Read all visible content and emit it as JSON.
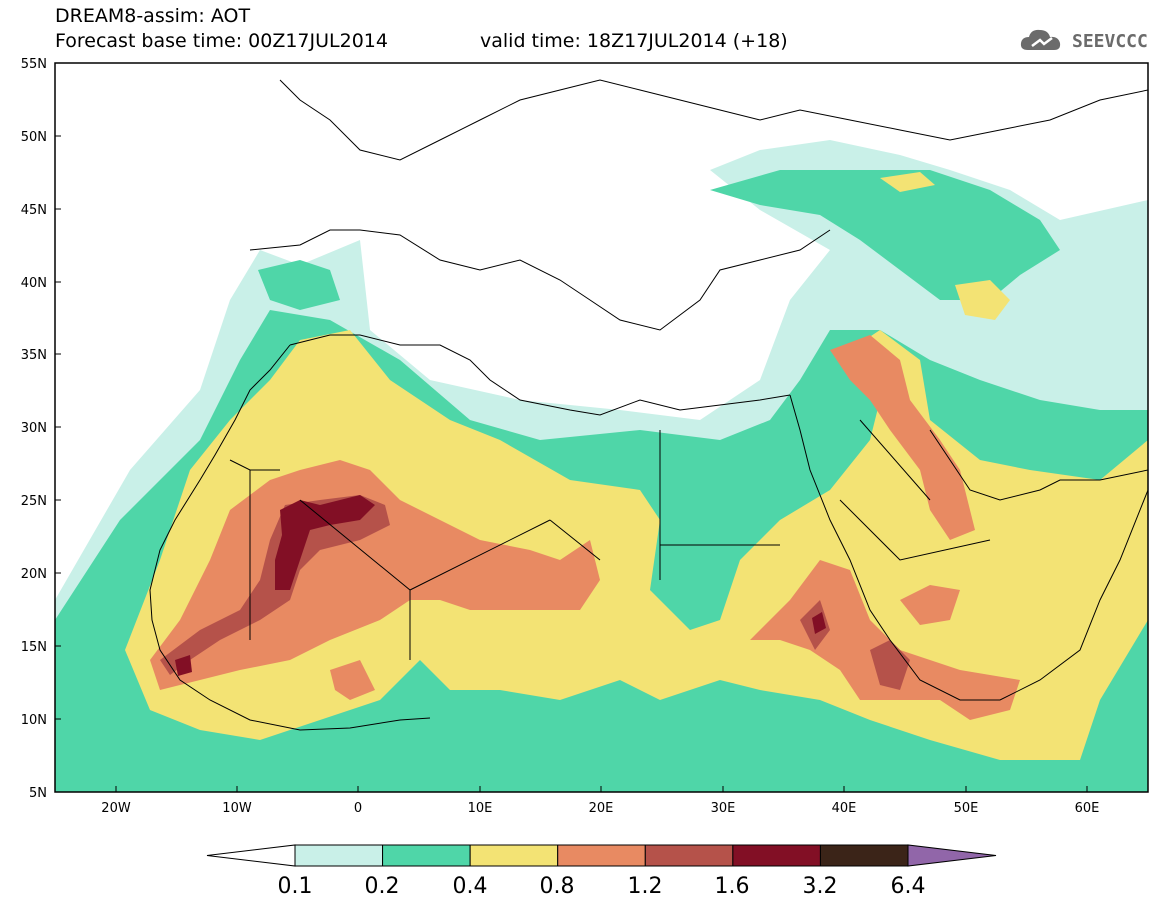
{
  "header": {
    "title": "DREAM8-assim: AOT",
    "base_time": "Forecast base time: 00Z17JUL2014",
    "valid_time": "valid time: 18Z17JUL2014 (+18)"
  },
  "logo": {
    "text": "SEEVCCC",
    "icon": "cloud-icon",
    "color": "#6b6b6b"
  },
  "map": {
    "lon_range": [
      -25,
      65
    ],
    "lat_range": [
      5,
      55
    ],
    "lat_labels": [
      "55N",
      "50N",
      "45N",
      "40N",
      "35N",
      "30N",
      "25N",
      "20N",
      "15N",
      "10N",
      "5N"
    ],
    "lon_labels": [
      "20W",
      "10W",
      "0",
      "10E",
      "20E",
      "30E",
      "40E",
      "50E",
      "60E"
    ]
  },
  "colorbar": {
    "levels": [
      "0.1",
      "0.2",
      "0.4",
      "0.8",
      "1.2",
      "1.6",
      "3.2",
      "6.4"
    ],
    "colors": [
      "#c9f0e8",
      "#4fd6a8",
      "#f3e374",
      "#e88a62",
      "#b5524a",
      "#820f25",
      "#3b2418",
      "#9166a9"
    ],
    "extend": "both"
  }
}
